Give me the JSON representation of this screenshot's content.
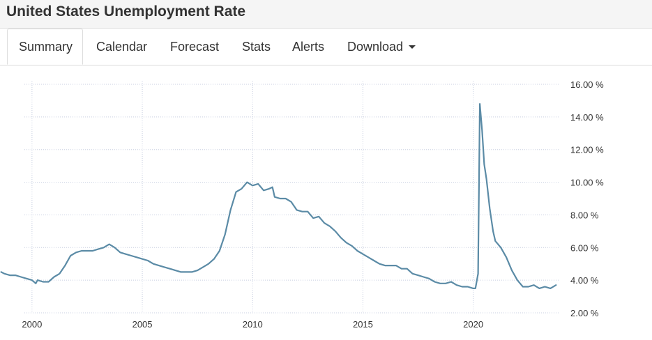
{
  "header": {
    "title": "United States Unemployment Rate"
  },
  "tabs": [
    {
      "label": "Summary",
      "active": true
    },
    {
      "label": "Calendar"
    },
    {
      "label": "Forecast"
    },
    {
      "label": "Stats"
    },
    {
      "label": "Alerts"
    },
    {
      "label": "Download",
      "dropdown": true
    }
  ],
  "colors": {
    "line": "#5b8ba6",
    "grid": "#c8cfe0",
    "text": "#333333"
  },
  "chart_data": {
    "type": "line",
    "title": "",
    "xlabel": "",
    "ylabel": "",
    "xlim": [
      1998.55,
      2023.9
    ],
    "ylim": [
      2,
      16
    ],
    "x_ticks": [
      2000,
      2005,
      2010,
      2015,
      2020
    ],
    "x_tick_labels": [
      "2000",
      "2005",
      "2010",
      "2015",
      "2020"
    ],
    "y_ticks": [
      2,
      4,
      6,
      8,
      10,
      12,
      14,
      16
    ],
    "y_tick_labels": [
      "2.00 %",
      "4.00 %",
      "6.00 %",
      "8.00 %",
      "10.00 %",
      "12.00 %",
      "14.00 %",
      "16.00 %"
    ],
    "grid": true,
    "y_axis_position": "right",
    "series": [
      {
        "x": [
          1998.6,
          1998.75,
          1999.0,
          1999.25,
          1999.5,
          1999.75,
          2000.0,
          2000.17,
          2000.25,
          2000.5,
          2000.75,
          2001.0,
          2001.25,
          2001.5,
          2001.75,
          2002.0,
          2002.25,
          2002.5,
          2002.75,
          2003.0,
          2003.25,
          2003.5,
          2003.75,
          2004.0,
          2004.25,
          2004.5,
          2004.75,
          2005.0,
          2005.25,
          2005.5,
          2005.75,
          2006.0,
          2006.25,
          2006.5,
          2006.75,
          2007.0,
          2007.25,
          2007.5,
          2007.75,
          2008.0,
          2008.25,
          2008.5,
          2008.75,
          2009.0,
          2009.25,
          2009.5,
          2009.75,
          2010.0,
          2010.25,
          2010.5,
          2010.75,
          2010.9,
          2011.0,
          2011.25,
          2011.5,
          2011.75,
          2012.0,
          2012.25,
          2012.5,
          2012.75,
          2013.0,
          2013.25,
          2013.5,
          2013.75,
          2014.0,
          2014.25,
          2014.5,
          2014.75,
          2015.0,
          2015.25,
          2015.5,
          2015.75,
          2016.0,
          2016.25,
          2016.5,
          2016.75,
          2017.0,
          2017.25,
          2017.5,
          2017.75,
          2018.0,
          2018.25,
          2018.5,
          2018.75,
          2019.0,
          2019.25,
          2019.5,
          2019.75,
          2020.0,
          2020.1,
          2020.22,
          2020.3,
          2020.4,
          2020.5,
          2020.6,
          2020.75,
          2020.9,
          2021.0,
          2021.25,
          2021.5,
          2021.75,
          2022.0,
          2022.25,
          2022.5,
          2022.75,
          2023.0,
          2023.25,
          2023.5,
          2023.75
        ],
        "y": [
          4.5,
          4.4,
          4.3,
          4.3,
          4.2,
          4.1,
          4.0,
          3.8,
          4.0,
          3.9,
          3.9,
          4.2,
          4.4,
          4.9,
          5.5,
          5.7,
          5.8,
          5.8,
          5.8,
          5.9,
          6.0,
          6.2,
          6.0,
          5.7,
          5.6,
          5.5,
          5.4,
          5.3,
          5.2,
          5.0,
          4.9,
          4.8,
          4.7,
          4.6,
          4.5,
          4.5,
          4.5,
          4.6,
          4.8,
          5.0,
          5.3,
          5.8,
          6.8,
          8.3,
          9.4,
          9.6,
          10.0,
          9.8,
          9.9,
          9.5,
          9.6,
          9.7,
          9.1,
          9.0,
          9.0,
          8.8,
          8.3,
          8.2,
          8.2,
          7.8,
          7.9,
          7.5,
          7.3,
          7.0,
          6.6,
          6.3,
          6.1,
          5.8,
          5.6,
          5.4,
          5.2,
          5.0,
          4.9,
          4.9,
          4.9,
          4.7,
          4.7,
          4.4,
          4.3,
          4.2,
          4.1,
          3.9,
          3.8,
          3.8,
          3.9,
          3.7,
          3.6,
          3.6,
          3.5,
          3.5,
          4.4,
          14.8,
          13.2,
          11.1,
          10.2,
          8.4,
          7.0,
          6.4,
          6.0,
          5.4,
          4.6,
          4.0,
          3.6,
          3.6,
          3.7,
          3.5,
          3.6,
          3.5,
          3.7
        ]
      }
    ]
  }
}
